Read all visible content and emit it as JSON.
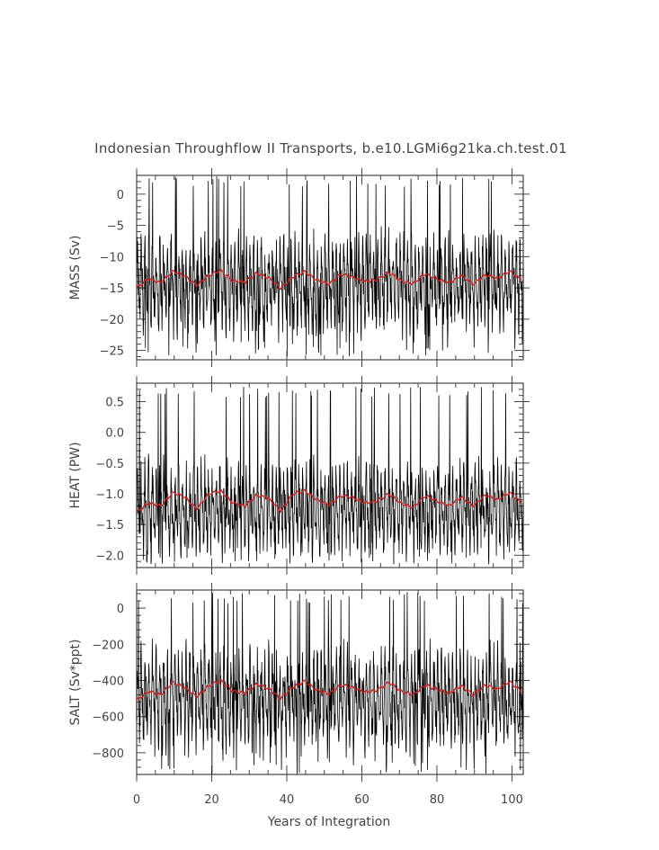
{
  "chart_data": {
    "type": "line",
    "title": "Indonesian Throughflow II Transports, b.e10.LGMi6g21ka.ch.test.01",
    "xlabel": "Years of Integration",
    "xlim": [
      0,
      103
    ],
    "xticks": [
      0,
      20,
      40,
      60,
      80,
      100
    ],
    "xtick_labels": [
      "0",
      "20",
      "40",
      "60",
      "80",
      "100"
    ],
    "grid": false,
    "legend": "none",
    "panels": [
      {
        "name": "mass",
        "ylabel": "MASS (Sv)",
        "ylim": [
          -26.5,
          3.0
        ],
        "yticks": [
          0,
          -5,
          -10,
          -15,
          -20,
          -25
        ],
        "ytick_labels": [
          "0",
          "−5",
          "−10",
          "−15",
          "−20",
          "−25"
        ],
        "monthly": {
          "mean": -14.5,
          "amplitude": 6.2,
          "min": -26.0,
          "max": 3.0
        },
        "annual_mean": [
          -15.0,
          -13.5,
          -14.2,
          -12.3,
          -13.1,
          -14.6,
          -13.0,
          -12.2,
          -13.9,
          -14.1,
          -12.6,
          -13.4,
          -15.1,
          -13.2,
          -12.4,
          -13.8,
          -14.4,
          -12.8,
          -13.3,
          -14.0,
          -13.7,
          -12.5,
          -13.9,
          -14.3,
          -12.7,
          -13.6,
          -14.2,
          -13.0,
          -14.4,
          -12.9,
          -13.5,
          -12.3,
          -13.8
        ]
      },
      {
        "name": "heat",
        "ylabel": "HEAT (PW)",
        "ylim": [
          -2.2,
          0.8
        ],
        "yticks": [
          0.5,
          0.0,
          -0.5,
          -1.0,
          -1.5,
          -2.0
        ],
        "ytick_labels": [
          "0.5",
          "0.0",
          "−0.5",
          "−1.0",
          "−1.5",
          "−2.0"
        ],
        "monthly": {
          "mean": -1.25,
          "amplitude": 0.6,
          "min": -2.15,
          "max": 0.75
        },
        "annual_mean": [
          -1.3,
          -1.15,
          -1.2,
          -0.98,
          -1.05,
          -1.25,
          -1.0,
          -0.95,
          -1.15,
          -1.2,
          -1.02,
          -1.08,
          -1.28,
          -1.0,
          -0.95,
          -1.1,
          -1.18,
          -1.03,
          -1.06,
          -1.15,
          -1.12,
          -1.0,
          -1.16,
          -1.22,
          -1.03,
          -1.12,
          -1.2,
          -1.05,
          -1.2,
          -1.02,
          -1.1,
          -0.98,
          -1.15
        ]
      },
      {
        "name": "salt",
        "ylabel": "SALT (Sv*ppt)",
        "ylim": [
          -920,
          100
        ],
        "yticks": [
          0,
          -200,
          -400,
          -600,
          -800
        ],
        "ytick_labels": [
          "0",
          "−200",
          "−400",
          "−600",
          "−800"
        ],
        "monthly": {
          "mean": -500,
          "amplitude": 220,
          "min": -920,
          "max": 90
        },
        "annual_mean": [
          -510,
          -460,
          -480,
          -410,
          -440,
          -490,
          -430,
          -400,
          -460,
          -470,
          -420,
          -445,
          -500,
          -435,
          -405,
          -455,
          -475,
          -425,
          -440,
          -465,
          -455,
          -410,
          -460,
          -480,
          -425,
          -450,
          -470,
          -430,
          -480,
          -425,
          -450,
          -405,
          -460
        ]
      }
    ]
  },
  "colors": {
    "monthly_series": "#000000",
    "annual_series": "#d42020",
    "axes": "#444444",
    "text": "#444444",
    "background": "#ffffff"
  }
}
